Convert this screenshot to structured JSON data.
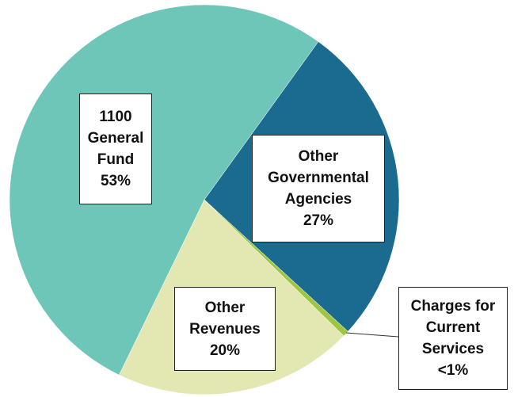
{
  "chart_data": {
    "type": "pie",
    "categories": [
      "Other Governmental Agencies",
      "Charges for Current Services",
      "Other Revenues",
      "1100 General Fund"
    ],
    "values": [
      27,
      0.5,
      20,
      53
    ],
    "value_labels": [
      "27%",
      "<1%",
      "20%",
      "53%"
    ],
    "colors": [
      "#1b6a8f",
      "#9fc542",
      "#e3e8b3",
      "#6dc6b8"
    ]
  }
}
